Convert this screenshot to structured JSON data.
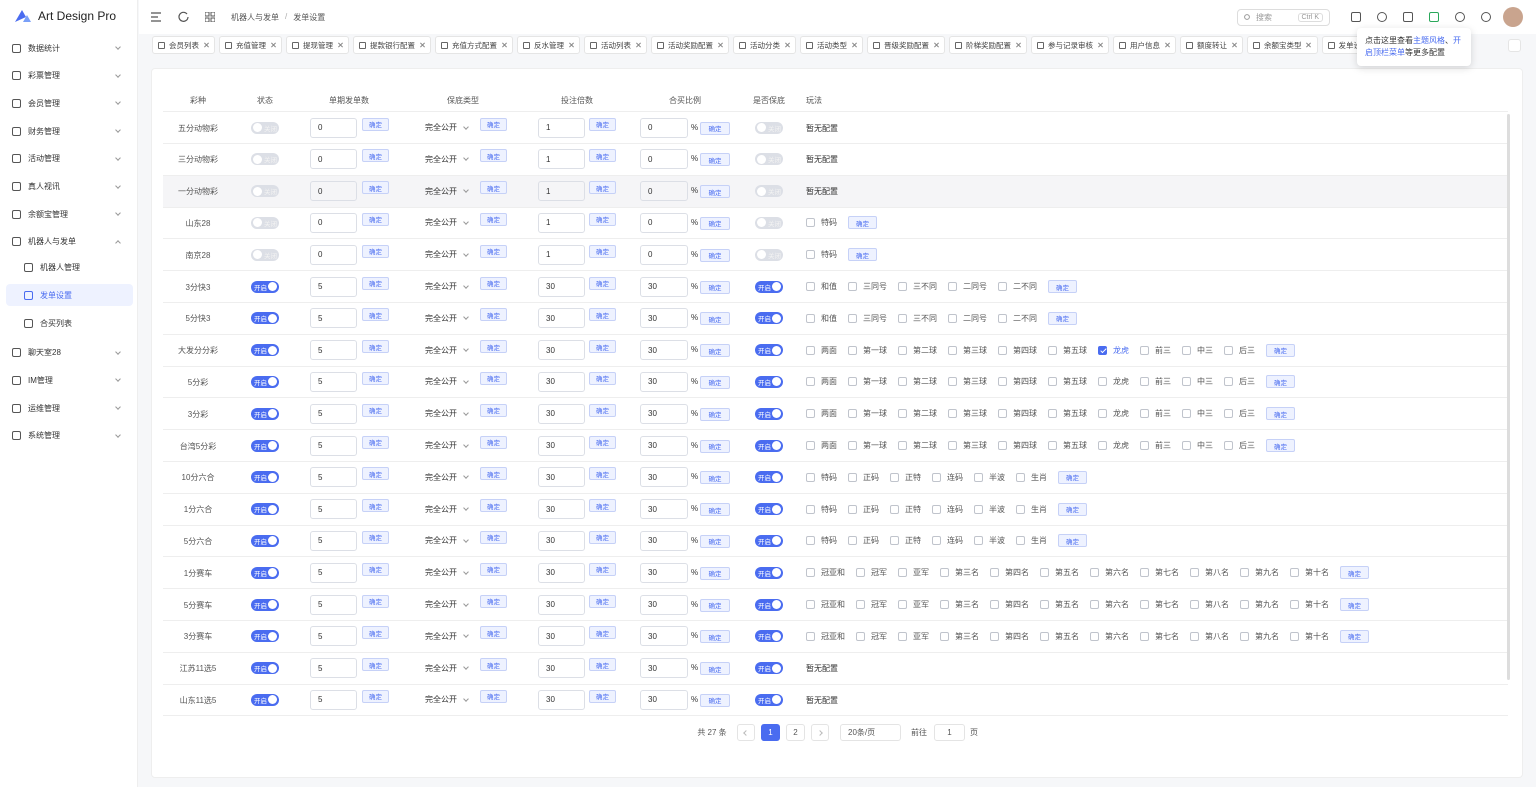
{
  "sidebar": {
    "logo": "Art Design Pro",
    "menu": [
      {
        "label": "数据统计"
      },
      {
        "label": "彩票管理"
      },
      {
        "label": "会员管理"
      },
      {
        "label": "财务管理"
      },
      {
        "label": "活动管理"
      },
      {
        "label": "真人视讯"
      },
      {
        "label": "余额宝管理"
      },
      {
        "label": "机器人与发单",
        "children": [
          {
            "label": "机器人管理",
            "active": false
          },
          {
            "label": "发单设置",
            "active": true
          },
          {
            "label": "合买列表",
            "active": false
          }
        ]
      },
      {
        "label": "聊天室28"
      },
      {
        "label": "IM管理"
      },
      {
        "label": "运维管理"
      },
      {
        "label": "系统管理"
      }
    ]
  },
  "header": {
    "breadcrumb": [
      "机器人与发单",
      "发单设置"
    ],
    "search": "搜索",
    "shortcut": "Ctrl K"
  },
  "tabs": [
    "会员列表",
    "充值管理",
    "提现管理",
    "提款银行配置",
    "充值方式配置",
    "反水管理",
    "活动列表",
    "活动奖励配置",
    "活动分类",
    "活动类型",
    "晋级奖励配置",
    "阶梯奖励配置",
    "参与记录审核",
    "用户信息",
    "额度转让",
    "余额宝类型",
    "发单设置"
  ],
  "tooltip": [
    {
      "text": "点击这里查看",
      "link": false
    },
    {
      "text": "主题风格",
      "link": true
    },
    {
      "text": "、",
      "link": false
    },
    {
      "text": "开启顶栏菜单",
      "link": true
    },
    {
      "text": "等更多配置",
      "link": false
    }
  ],
  "table": {
    "columns": [
      "彩种",
      "状态",
      "单期发单数",
      "保底类型",
      "投注倍数",
      "合买比例",
      "是否保底",
      "玩法"
    ],
    "confirm": "确定",
    "percent": "%",
    "on_label": "开启",
    "off_label": "关闭",
    "hovered_row": 2,
    "rows": [
      {
        "name": "五分动物彩",
        "status": false,
        "count": 0,
        "type": "完全公开",
        "multiple": 1,
        "ratio": 0,
        "guarantee": false,
        "plays": [],
        "empty": "暂无配置"
      },
      {
        "name": "三分动物彩",
        "status": false,
        "count": 0,
        "type": "完全公开",
        "multiple": 1,
        "ratio": 0,
        "guarantee": false,
        "plays": [],
        "empty": "暂无配置"
      },
      {
        "name": "一分动物彩",
        "status": false,
        "count": 0,
        "type": "完全公开",
        "multiple": 1,
        "ratio": 0,
        "guarantee": false,
        "plays": [],
        "empty": "暂无配置"
      },
      {
        "name": "山东28",
        "status": false,
        "count": 0,
        "type": "完全公开",
        "multiple": 1,
        "ratio": 0,
        "guarantee": false,
        "plays": [
          {
            "label": "特码",
            "checked": false
          }
        ]
      },
      {
        "name": "南京28",
        "status": false,
        "count": 0,
        "type": "完全公开",
        "multiple": 1,
        "ratio": 0,
        "guarantee": false,
        "plays": [
          {
            "label": "特码",
            "checked": false
          }
        ]
      },
      {
        "name": "3分快3",
        "status": true,
        "count": 5,
        "type": "完全公开",
        "multiple": 30,
        "ratio": 30,
        "guarantee": true,
        "plays": [
          {
            "label": "和值",
            "checked": false
          },
          {
            "label": "三同号",
            "checked": false
          },
          {
            "label": "三不同",
            "checked": false
          },
          {
            "label": "二同号",
            "checked": false
          },
          {
            "label": "二不同",
            "checked": false
          }
        ]
      },
      {
        "name": "5分快3",
        "status": true,
        "count": 5,
        "type": "完全公开",
        "multiple": 30,
        "ratio": 30,
        "guarantee": true,
        "plays": [
          {
            "label": "和值",
            "checked": false
          },
          {
            "label": "三同号",
            "checked": false
          },
          {
            "label": "三不同",
            "checked": false
          },
          {
            "label": "二同号",
            "checked": false
          },
          {
            "label": "二不同",
            "checked": false
          }
        ]
      },
      {
        "name": "大发分分彩",
        "status": true,
        "count": 5,
        "type": "完全公开",
        "multiple": 30,
        "ratio": 30,
        "guarantee": true,
        "plays": [
          {
            "label": "两面",
            "checked": false
          },
          {
            "label": "第一球",
            "checked": false
          },
          {
            "label": "第二球",
            "checked": false
          },
          {
            "label": "第三球",
            "checked": false
          },
          {
            "label": "第四球",
            "checked": false
          },
          {
            "label": "第五球",
            "checked": false
          },
          {
            "label": "龙虎",
            "checked": true
          },
          {
            "label": "前三",
            "checked": false
          },
          {
            "label": "中三",
            "checked": false
          },
          {
            "label": "后三",
            "checked": false
          }
        ]
      },
      {
        "name": "5分彩",
        "status": true,
        "count": 5,
        "type": "完全公开",
        "multiple": 30,
        "ratio": 30,
        "guarantee": true,
        "plays": [
          {
            "label": "两面",
            "checked": false
          },
          {
            "label": "第一球",
            "checked": false
          },
          {
            "label": "第二球",
            "checked": false
          },
          {
            "label": "第三球",
            "checked": false
          },
          {
            "label": "第四球",
            "checked": false
          },
          {
            "label": "第五球",
            "checked": false
          },
          {
            "label": "龙虎",
            "checked": false
          },
          {
            "label": "前三",
            "checked": false
          },
          {
            "label": "中三",
            "checked": false
          },
          {
            "label": "后三",
            "checked": false
          }
        ]
      },
      {
        "name": "3分彩",
        "status": true,
        "count": 5,
        "type": "完全公开",
        "multiple": 30,
        "ratio": 30,
        "guarantee": true,
        "plays": [
          {
            "label": "两面",
            "checked": false
          },
          {
            "label": "第一球",
            "checked": false
          },
          {
            "label": "第二球",
            "checked": false
          },
          {
            "label": "第三球",
            "checked": false
          },
          {
            "label": "第四球",
            "checked": false
          },
          {
            "label": "第五球",
            "checked": false
          },
          {
            "label": "龙虎",
            "checked": false
          },
          {
            "label": "前三",
            "checked": false
          },
          {
            "label": "中三",
            "checked": false
          },
          {
            "label": "后三",
            "checked": false
          }
        ]
      },
      {
        "name": "台湾5分彩",
        "status": true,
        "count": 5,
        "type": "完全公开",
        "multiple": 30,
        "ratio": 30,
        "guarantee": true,
        "plays": [
          {
            "label": "两面",
            "checked": false
          },
          {
            "label": "第一球",
            "checked": false
          },
          {
            "label": "第二球",
            "checked": false
          },
          {
            "label": "第三球",
            "checked": false
          },
          {
            "label": "第四球",
            "checked": false
          },
          {
            "label": "第五球",
            "checked": false
          },
          {
            "label": "龙虎",
            "checked": false
          },
          {
            "label": "前三",
            "checked": false
          },
          {
            "label": "中三",
            "checked": false
          },
          {
            "label": "后三",
            "checked": false
          }
        ]
      },
      {
        "name": "10分六合",
        "status": true,
        "count": 5,
        "type": "完全公开",
        "multiple": 30,
        "ratio": 30,
        "guarantee": true,
        "plays": [
          {
            "label": "特码",
            "checked": false
          },
          {
            "label": "正码",
            "checked": false
          },
          {
            "label": "正特",
            "checked": false
          },
          {
            "label": "连码",
            "checked": false
          },
          {
            "label": "半波",
            "checked": false
          },
          {
            "label": "生肖",
            "checked": false
          }
        ]
      },
      {
        "name": "1分六合",
        "status": true,
        "count": 5,
        "type": "完全公开",
        "multiple": 30,
        "ratio": 30,
        "guarantee": true,
        "plays": [
          {
            "label": "特码",
            "checked": false
          },
          {
            "label": "正码",
            "checked": false
          },
          {
            "label": "正特",
            "checked": false
          },
          {
            "label": "连码",
            "checked": false
          },
          {
            "label": "半波",
            "checked": false
          },
          {
            "label": "生肖",
            "checked": false
          }
        ]
      },
      {
        "name": "5分六合",
        "status": true,
        "count": 5,
        "type": "完全公开",
        "multiple": 30,
        "ratio": 30,
        "guarantee": true,
        "plays": [
          {
            "label": "特码",
            "checked": false
          },
          {
            "label": "正码",
            "checked": false
          },
          {
            "label": "正特",
            "checked": false
          },
          {
            "label": "连码",
            "checked": false
          },
          {
            "label": "半波",
            "checked": false
          },
          {
            "label": "生肖",
            "checked": false
          }
        ]
      },
      {
        "name": "1分赛车",
        "status": true,
        "count": 5,
        "type": "完全公开",
        "multiple": 30,
        "ratio": 30,
        "guarantee": true,
        "plays": [
          {
            "label": "冠亚和",
            "checked": false
          },
          {
            "label": "冠军",
            "checked": false
          },
          {
            "label": "亚军",
            "checked": false
          },
          {
            "label": "第三名",
            "checked": false
          },
          {
            "label": "第四名",
            "checked": false
          },
          {
            "label": "第五名",
            "checked": false
          },
          {
            "label": "第六名",
            "checked": false
          },
          {
            "label": "第七名",
            "checked": false
          },
          {
            "label": "第八名",
            "checked": false
          },
          {
            "label": "第九名",
            "checked": false
          },
          {
            "label": "第十名",
            "checked": false
          }
        ]
      },
      {
        "name": "5分赛车",
        "status": true,
        "count": 5,
        "type": "完全公开",
        "multiple": 30,
        "ratio": 30,
        "guarantee": true,
        "plays": [
          {
            "label": "冠亚和",
            "checked": false
          },
          {
            "label": "冠军",
            "checked": false
          },
          {
            "label": "亚军",
            "checked": false
          },
          {
            "label": "第三名",
            "checked": false
          },
          {
            "label": "第四名",
            "checked": false
          },
          {
            "label": "第五名",
            "checked": false
          },
          {
            "label": "第六名",
            "checked": false
          },
          {
            "label": "第七名",
            "checked": false
          },
          {
            "label": "第八名",
            "checked": false
          },
          {
            "label": "第九名",
            "checked": false
          },
          {
            "label": "第十名",
            "checked": false
          }
        ]
      },
      {
        "name": "3分赛车",
        "status": true,
        "count": 5,
        "type": "完全公开",
        "multiple": 30,
        "ratio": 30,
        "guarantee": true,
        "plays": [
          {
            "label": "冠亚和",
            "checked": false
          },
          {
            "label": "冠军",
            "checked": false
          },
          {
            "label": "亚军",
            "checked": false
          },
          {
            "label": "第三名",
            "checked": false
          },
          {
            "label": "第四名",
            "checked": false
          },
          {
            "label": "第五名",
            "checked": false
          },
          {
            "label": "第六名",
            "checked": false
          },
          {
            "label": "第七名",
            "checked": false
          },
          {
            "label": "第八名",
            "checked": false
          },
          {
            "label": "第九名",
            "checked": false
          },
          {
            "label": "第十名",
            "checked": false
          }
        ]
      },
      {
        "name": "江苏11选5",
        "status": true,
        "count": 5,
        "type": "完全公开",
        "multiple": 30,
        "ratio": 30,
        "guarantee": true,
        "plays": [],
        "empty": "暂无配置"
      },
      {
        "name": "山东11选5",
        "status": true,
        "count": 5,
        "type": "完全公开",
        "multiple": 30,
        "ratio": 30,
        "guarantee": true,
        "plays": [],
        "empty": "暂无配置"
      }
    ]
  },
  "pagination": {
    "total": "共 27 条",
    "pages": [
      1,
      2
    ],
    "current": 1,
    "page_size": "20条/页",
    "goto": "前往",
    "goto_value": 1,
    "page_unit": "页"
  }
}
